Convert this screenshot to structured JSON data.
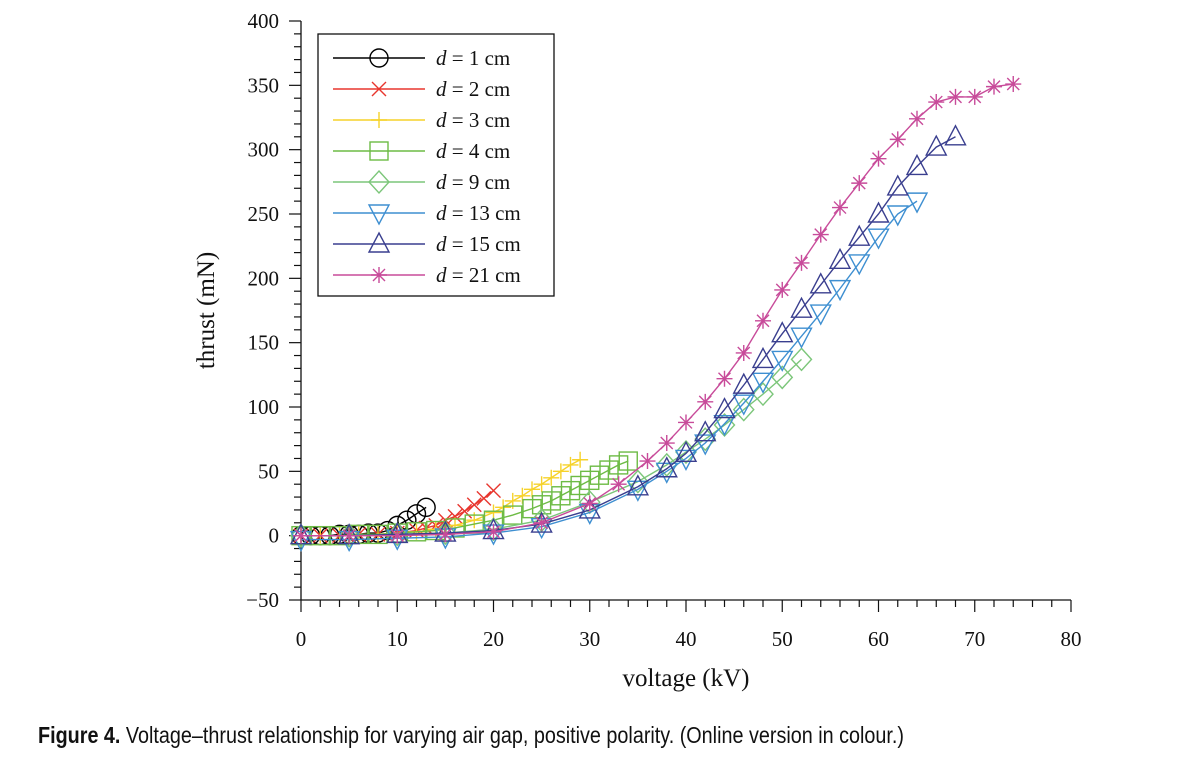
{
  "caption": {
    "label": "Figure 4.",
    "text": "Voltage–thrust relationship for varying air gap, positive polarity. (Online version in colour.)"
  },
  "chart_data": {
    "type": "line",
    "xlabel": "voltage (kV)",
    "ylabel": "thrust (mN)",
    "xlim": [
      0,
      80
    ],
    "ylim": [
      -50,
      400
    ],
    "xticks": [
      0,
      10,
      20,
      30,
      40,
      50,
      60,
      70,
      80
    ],
    "yticks": [
      -50,
      0,
      50,
      100,
      150,
      200,
      250,
      300,
      350,
      400
    ],
    "grid": false,
    "legend_position": "top-left",
    "series": [
      {
        "name": "d = 1 cm",
        "color": "#000000",
        "marker": "circle",
        "x": [
          0,
          1,
          2,
          3,
          4,
          5,
          6,
          7,
          8,
          9,
          10,
          11,
          12,
          13
        ],
        "y": [
          0,
          0,
          0,
          0,
          1,
          1,
          1,
          2,
          2,
          4,
          8,
          12,
          17,
          22
        ]
      },
      {
        "name": "d = 2 cm",
        "color": "#e8362e",
        "marker": "x",
        "x": [
          0,
          2,
          4,
          6,
          8,
          10,
          12,
          13,
          14,
          15,
          16,
          17,
          18,
          19,
          20
        ],
        "y": [
          0,
          0,
          0,
          1,
          1,
          2,
          4,
          6,
          8,
          12,
          15,
          19,
          24,
          29,
          35
        ]
      },
      {
        "name": "d = 3 cm",
        "color": "#f6d22a",
        "marker": "plus",
        "x": [
          0,
          2,
          4,
          6,
          8,
          10,
          12,
          14,
          16,
          18,
          20,
          21,
          22,
          23,
          24,
          25,
          26,
          27,
          28,
          29
        ],
        "y": [
          0,
          0,
          0,
          1,
          1,
          2,
          3,
          5,
          8,
          12,
          18,
          22,
          27,
          31,
          36,
          40,
          45,
          50,
          55,
          59
        ]
      },
      {
        "name": "d = 4 cm",
        "color": "#6dbb45",
        "marker": "square",
        "x": [
          0,
          2,
          4,
          6,
          8,
          10,
          12,
          14,
          16,
          18,
          20,
          22,
          24,
          25,
          26,
          27,
          28,
          29,
          30,
          31,
          32,
          33,
          34
        ],
        "y": [
          0,
          0,
          0,
          1,
          1,
          2,
          3,
          4,
          6,
          9,
          12,
          16,
          21,
          24,
          27,
          31,
          35,
          39,
          43,
          47,
          51,
          55,
          58
        ]
      },
      {
        "name": "d = 9 cm",
        "color": "#7cc67a",
        "marker": "diamond",
        "x": [
          0,
          5,
          10,
          15,
          20,
          25,
          30,
          35,
          38,
          40,
          42,
          44,
          46,
          48,
          50,
          52
        ],
        "y": [
          0,
          0,
          1,
          2,
          5,
          12,
          26,
          42,
          55,
          65,
          75,
          86,
          98,
          110,
          123,
          137
        ]
      },
      {
        "name": "d = 13 cm",
        "color": "#3e8fd1",
        "marker": "triangle-down",
        "x": [
          0,
          5,
          10,
          15,
          20,
          25,
          30,
          35,
          38,
          40,
          42,
          44,
          46,
          48,
          50,
          52,
          54,
          56,
          58,
          60,
          62,
          64
        ],
        "y": [
          -3,
          -3,
          -2,
          -1,
          2,
          7,
          18,
          36,
          50,
          60,
          72,
          87,
          103,
          120,
          137,
          155,
          173,
          192,
          212,
          232,
          250,
          260
        ]
      },
      {
        "name": "d = 15 cm",
        "color": "#3a3f8f",
        "marker": "triangle-up",
        "x": [
          0,
          5,
          10,
          15,
          20,
          25,
          30,
          35,
          38,
          40,
          42,
          44,
          46,
          48,
          50,
          52,
          54,
          56,
          58,
          60,
          62,
          64,
          66,
          68
        ],
        "y": [
          0,
          0,
          1,
          2,
          4,
          9,
          20,
          38,
          52,
          64,
          80,
          98,
          117,
          137,
          157,
          176,
          195,
          214,
          232,
          250,
          271,
          287,
          302,
          310
        ]
      },
      {
        "name": "d = 21 cm",
        "color": "#c84b9a",
        "marker": "asterisk",
        "x": [
          0,
          5,
          10,
          15,
          20,
          25,
          30,
          33,
          36,
          38,
          40,
          42,
          44,
          46,
          48,
          50,
          52,
          54,
          56,
          58,
          60,
          62,
          64,
          66,
          68,
          70,
          72,
          74
        ],
        "y": [
          0,
          0,
          0,
          1,
          3,
          10,
          25,
          40,
          58,
          72,
          88,
          104,
          122,
          142,
          167,
          191,
          212,
          234,
          255,
          274,
          293,
          308,
          324,
          337,
          341,
          341,
          349,
          351
        ]
      }
    ]
  }
}
